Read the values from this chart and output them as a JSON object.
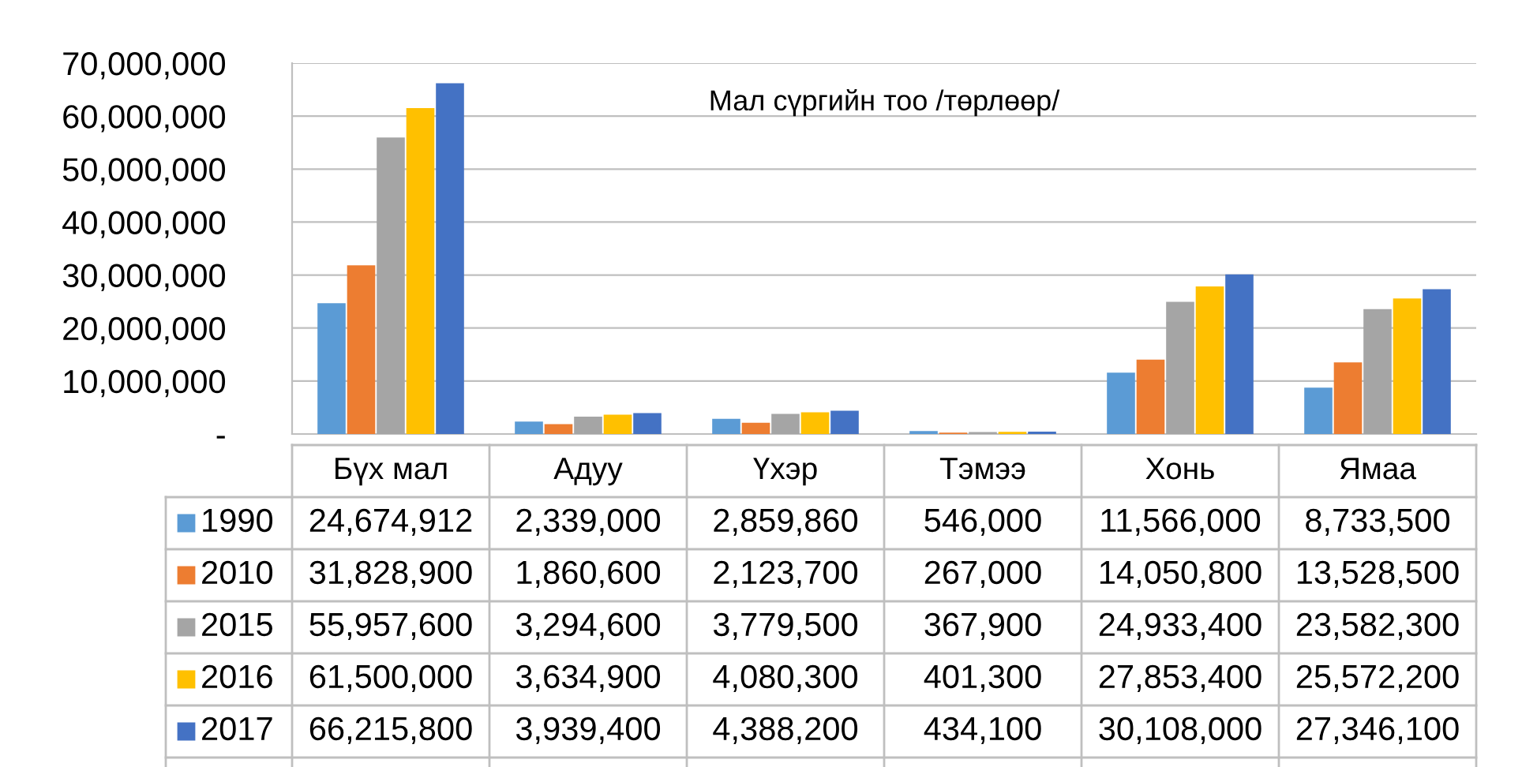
{
  "chart_data": {
    "type": "bar",
    "title": "Мал сүргийн тоо /төрлөөр/",
    "categories": [
      "Бүх мал",
      "Адуу",
      "Үхэр",
      "Тэмээ",
      "Хонь",
      "Ямаа"
    ],
    "series": [
      {
        "name": "1990",
        "color": "#5b9bd5",
        "values": [
          24674912,
          2339000,
          2859860,
          546000,
          11566000,
          8733500
        ],
        "value_labels": [
          "24,674,912",
          "2,339,000",
          "2,859,860",
          "546,000",
          "11,566,000",
          "8,733,500"
        ]
      },
      {
        "name": "2010",
        "color": "#ed7d31",
        "values": [
          31828900,
          1860600,
          2123700,
          267000,
          14050800,
          13528500
        ],
        "value_labels": [
          "31,828,900",
          "1,860,600",
          "2,123,700",
          "267,000",
          "14,050,800",
          "13,528,500"
        ]
      },
      {
        "name": "2015",
        "color": "#a5a5a5",
        "values": [
          55957600,
          3294600,
          3779500,
          367900,
          24933400,
          23582300
        ],
        "value_labels": [
          "55,957,600",
          "3,294,600",
          "3,779,500",
          "367,900",
          "24,933,400",
          "23,582,300"
        ]
      },
      {
        "name": "2016",
        "color": "#ffc000",
        "values": [
          61500000,
          3634900,
          4080300,
          401300,
          27853400,
          25572200
        ],
        "value_labels": [
          "61,500,000",
          "3,634,900",
          "4,080,300",
          "401,300",
          "27,853,400",
          "25,572,200"
        ]
      },
      {
        "name": "2017",
        "color": "#4472c4",
        "values": [
          66215800,
          3939400,
          4388200,
          434100,
          30108000,
          27346100
        ],
        "value_labels": [
          "66,215,800",
          "3,939,400",
          "4,388,200",
          "434,100",
          "30,108,000",
          "27,346,100"
        ]
      }
    ],
    "ylim": [
      0,
      70000000
    ],
    "yticks": [
      {
        "value": 0,
        "label": "-"
      },
      {
        "value": 10000000,
        "label": "10,000,000"
      },
      {
        "value": 20000000,
        "label": "20,000,000"
      },
      {
        "value": 30000000,
        "label": "30,000,000"
      },
      {
        "value": 40000000,
        "label": "40,000,000"
      },
      {
        "value": 50000000,
        "label": "50,000,000"
      },
      {
        "value": 60000000,
        "label": "60,000,000"
      },
      {
        "value": 70000000,
        "label": "70,000,000"
      }
    ],
    "grid": "y",
    "legend": "bottom"
  }
}
